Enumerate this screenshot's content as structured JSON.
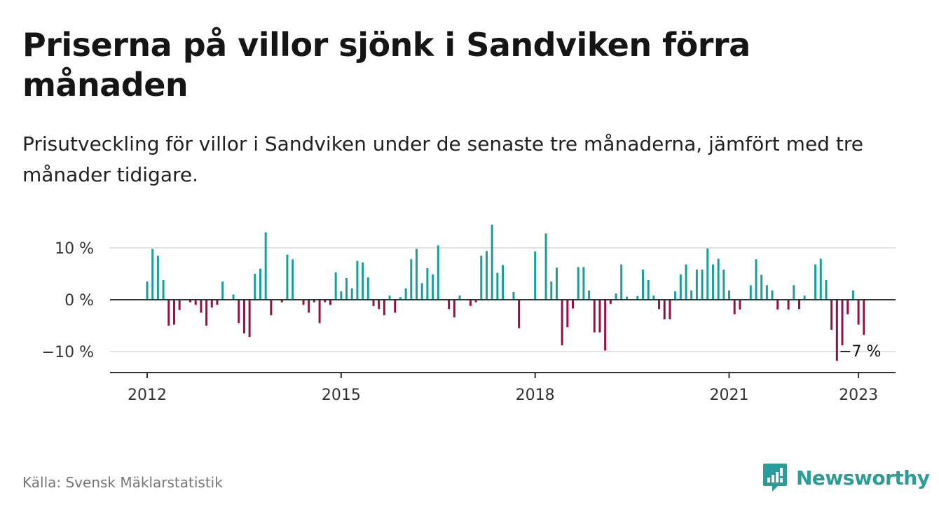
{
  "title": "Priserna på villor sjönk i Sandviken förra månaden",
  "subtitle": "Prisutveckling för villor i Sandviken under de senaste tre månaderna, jämfört med tre månader tidigare.",
  "source": "Källa: Svensk Mäklarstatistik",
  "brand": {
    "name": "Newsworthy",
    "icon": "newsworthy-logo-icon"
  },
  "colors": {
    "positive": "#1a9e9a",
    "negative": "#9b0d45",
    "grid": "#d9d9d9",
    "axis": "#333333",
    "brand": "#2a9d9a"
  },
  "chart_data": {
    "type": "bar",
    "x_start": "2012-01",
    "x_interval": "month",
    "ylim": [
      -14,
      16
    ],
    "grid": true,
    "y_ticks": [
      {
        "value": 10,
        "label": "10 %"
      },
      {
        "value": 0,
        "label": "0 %"
      },
      {
        "value": -10,
        "label": "−10 %"
      }
    ],
    "x_ticks": [
      {
        "label": "2012",
        "index": 0
      },
      {
        "label": "2015",
        "index": 36
      },
      {
        "label": "2018",
        "index": 72
      },
      {
        "label": "2021",
        "index": 108
      },
      {
        "label": "2023",
        "index": 132
      }
    ],
    "annotation": {
      "label": "−7 %",
      "index": 132
    },
    "values": [
      3.5,
      9.8,
      8.5,
      3.8,
      -5.0,
      -4.8,
      -2.0,
      0,
      -0.5,
      -1.0,
      -2.5,
      -5.0,
      -1.5,
      -1.0,
      3.5,
      0,
      1.0,
      -4.5,
      -6.5,
      -7.2,
      5.0,
      6.0,
      13.0,
      -3.0,
      0,
      -0.5,
      8.7,
      7.8,
      0,
      -1.0,
      -2.5,
      -0.5,
      -4.5,
      -0.5,
      -1.0,
      5.3,
      1.6,
      4.2,
      2.2,
      7.5,
      7.2,
      4.3,
      -1.2,
      -1.8,
      -3.0,
      0.8,
      -2.5,
      0.5,
      2.2,
      7.8,
      9.8,
      3.2,
      6.1,
      4.9,
      10.5,
      0,
      -1.8,
      -3.4,
      0.8,
      0,
      -1.2,
      -0.5,
      8.5,
      9.4,
      14.5,
      5.2,
      6.7,
      0,
      1.5,
      -5.5,
      0,
      0,
      9.3,
      0,
      12.8,
      3.5,
      6.2,
      -8.8,
      -5.3,
      -1.7,
      6.3,
      6.3,
      1.8,
      -6.3,
      -6.3,
      -9.8,
      -0.8,
      1.2,
      6.8,
      0.6,
      0,
      0.7,
      5.8,
      3.8,
      0.8,
      -1.8,
      -3.8,
      -3.8,
      1.6,
      4.9,
      6.8,
      1.8,
      5.8,
      5.8,
      9.9,
      6.8,
      7.9,
      5.8,
      1.8,
      -2.8,
      -1.9,
      0,
      2.8,
      7.8,
      4.8,
      2.8,
      1.8,
      -1.9,
      0,
      -1.9,
      2.8,
      -1.8,
      0.8,
      0,
      6.8,
      7.9,
      3.8,
      -5.8,
      -11.8,
      -8.8,
      -2.8,
      1.8,
      -4.8,
      -6.8
    ]
  }
}
